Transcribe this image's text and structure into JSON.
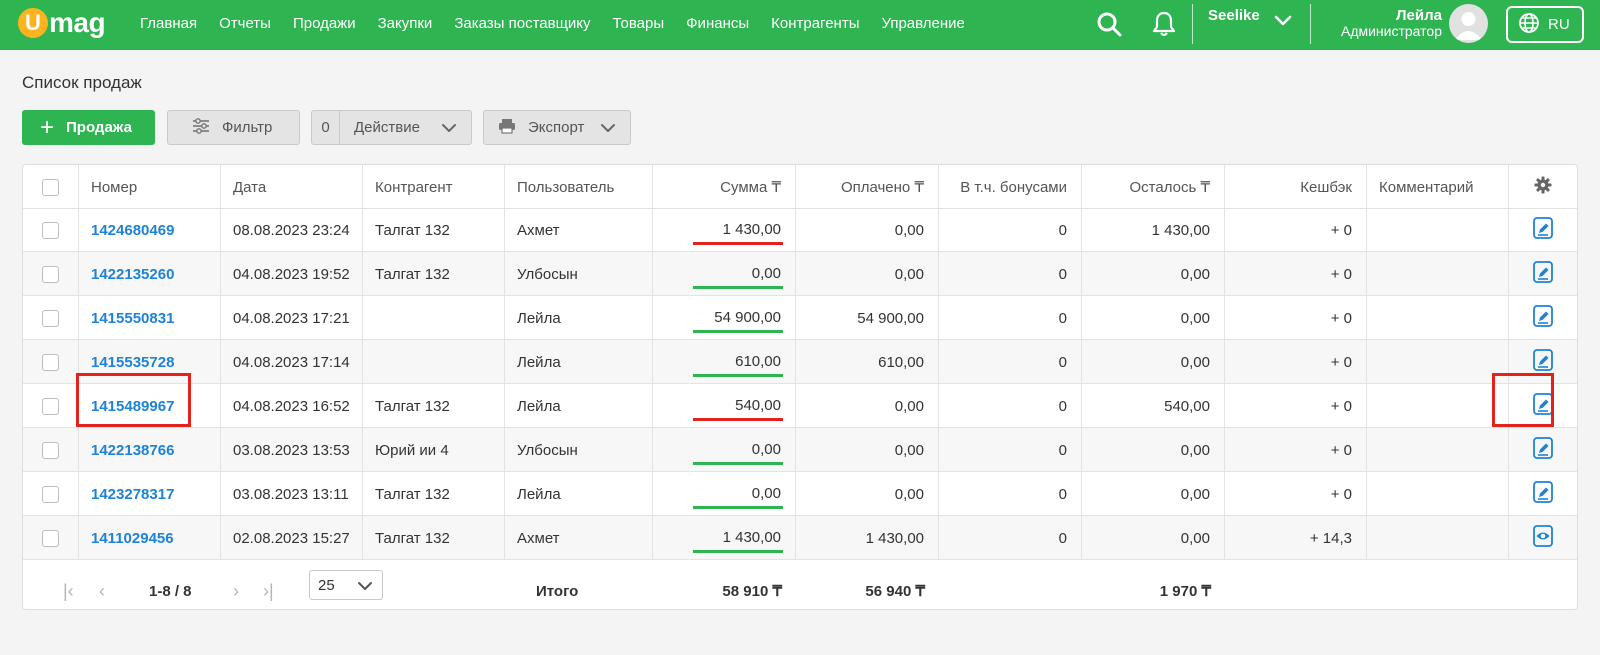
{
  "brand": {
    "logo_letter": "U",
    "logo_text": "mag"
  },
  "nav": [
    "Главная",
    "Отчеты",
    "Продажи",
    "Закупки",
    "Заказы поставщику",
    "Товары",
    "Финансы",
    "Контрагенты",
    "Управление"
  ],
  "header": {
    "store": "Seelike",
    "user_name": "Лейла",
    "user_role": "Администратор",
    "language": "RU",
    "icons": [
      "search-icon",
      "bell-icon",
      "chevron-down-icon",
      "avatar",
      "globe-icon"
    ]
  },
  "page": {
    "title": "Список продаж"
  },
  "toolbar": {
    "add_label": "Продажа",
    "filter_label": "Фильтр",
    "action_count": "0",
    "action_label": "Действие",
    "export_label": "Экспорт"
  },
  "table": {
    "columns": [
      "Номер",
      "Дата",
      "Контрагент",
      "Пользователь",
      "Сумма ₸",
      "Оплачено ₸",
      "В т.ч. бонусами",
      "Осталось ₸",
      "Кешбэк",
      "Комментарий"
    ],
    "rows": [
      {
        "number": "1424680469",
        "date": "08.08.2023 23:24",
        "counterparty": "Талгат 132",
        "user": "Ахмет",
        "sum": "1 430,00",
        "paid": "0,00",
        "bonus": "0",
        "remaining": "1 430,00",
        "cashback": "+ 0",
        "comment": "",
        "status": "unpaid",
        "row_action": "edit"
      },
      {
        "number": "1422135260",
        "date": "04.08.2023 19:52",
        "counterparty": "Талгат 132",
        "user": "Улбосын",
        "sum": "0,00",
        "paid": "0,00",
        "bonus": "0",
        "remaining": "0,00",
        "cashback": "+ 0",
        "comment": "",
        "status": "paid",
        "row_action": "edit"
      },
      {
        "number": "1415550831",
        "date": "04.08.2023 17:21",
        "counterparty": "",
        "user": "Лейла",
        "sum": "54 900,00",
        "paid": "54 900,00",
        "bonus": "0",
        "remaining": "0,00",
        "cashback": "+ 0",
        "comment": "",
        "status": "paid",
        "row_action": "edit"
      },
      {
        "number": "1415535728",
        "date": "04.08.2023 17:14",
        "counterparty": "",
        "user": "Лейла",
        "sum": "610,00",
        "paid": "610,00",
        "bonus": "0",
        "remaining": "0,00",
        "cashback": "+ 0",
        "comment": "",
        "status": "paid",
        "row_action": "edit"
      },
      {
        "number": "1415489967",
        "date": "04.08.2023 16:52",
        "counterparty": "Талгат 132",
        "user": "Лейла",
        "sum": "540,00",
        "paid": "0,00",
        "bonus": "0",
        "remaining": "540,00",
        "cashback": "+ 0",
        "comment": "",
        "status": "unpaid",
        "row_action": "edit"
      },
      {
        "number": "1422138766",
        "date": "03.08.2023 13:53",
        "counterparty": "Юрий ии 4",
        "user": "Улбосын",
        "sum": "0,00",
        "paid": "0,00",
        "bonus": "0",
        "remaining": "0,00",
        "cashback": "+ 0",
        "comment": "",
        "status": "paid",
        "row_action": "edit"
      },
      {
        "number": "1423278317",
        "date": "03.08.2023 13:11",
        "counterparty": "Талгат 132",
        "user": "Лейла",
        "sum": "0,00",
        "paid": "0,00",
        "bonus": "0",
        "remaining": "0,00",
        "cashback": "+ 0",
        "comment": "",
        "status": "paid",
        "row_action": "edit"
      },
      {
        "number": "1411029456",
        "date": "02.08.2023 15:27",
        "counterparty": "Талгат 132",
        "user": "Ахмет",
        "sum": "1 430,00",
        "paid": "1 430,00",
        "bonus": "0",
        "remaining": "0,00",
        "cashback": "+ 14,3",
        "comment": "",
        "status": "paid",
        "row_action": "view"
      }
    ],
    "footer": {
      "range": "1-8 / 8",
      "per_page": "25",
      "total_label": "Итого",
      "total_sum": "58 910 ₸",
      "total_paid": "56 940 ₸",
      "total_remaining": "1 970 ₸"
    }
  },
  "colors": {
    "brand": "#2eb552",
    "link": "#1e83d6",
    "paid_line": "#2eb552",
    "unpaid_line": "#e3221d",
    "highlight": "#e3221d",
    "logo_accent": "#fbb41f"
  }
}
